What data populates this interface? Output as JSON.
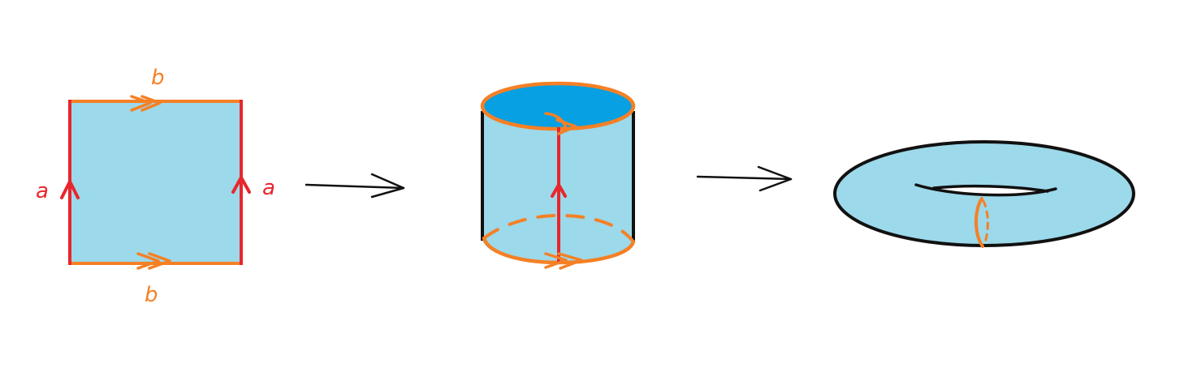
{
  "labels": {
    "square_top": "b",
    "square_bottom": "b",
    "square_left": "a",
    "square_right": "a"
  },
  "colors": {
    "surface_fill": "#9cd9ea",
    "cylinder_top_fill": "#06a0e3",
    "edge_a": "#e8262d",
    "edge_b": "#f58025",
    "outline": "#111111",
    "background": "#ffffff"
  },
  "icons": {
    "arrow_1": "right-arrow-icon",
    "arrow_2": "right-arrow-icon"
  }
}
